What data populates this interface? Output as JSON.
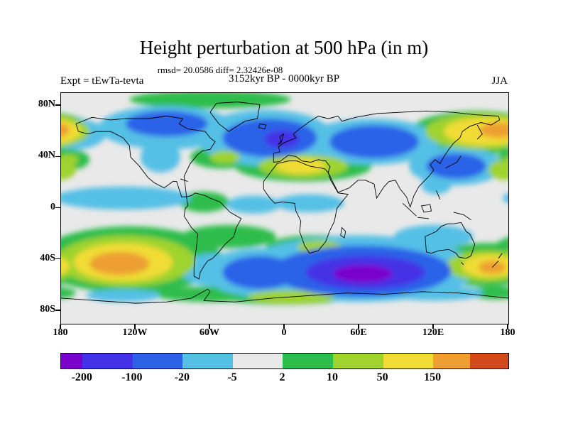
{
  "header": {
    "title": "Height perturbation at 500 hPa (in m)",
    "stats_line": "rmsd= 20.0586 diff= 2.32426e-08",
    "comparison_line": "3152kyr BP - 0000kyr BP",
    "experiment_label": "Expt = tEwTa-tevta",
    "season_label": "JJA"
  },
  "axes": {
    "lat_ticks": [
      {
        "label": "80N",
        "lat": 80
      },
      {
        "label": "40N",
        "lat": 40
      },
      {
        "label": "0",
        "lat": 0
      },
      {
        "label": "40S",
        "lat": -40
      },
      {
        "label": "80S",
        "lat": -80
      }
    ],
    "lon_ticks": [
      {
        "label": "180",
        "lon": -180
      },
      {
        "label": "120W",
        "lon": -120
      },
      {
        "label": "60W",
        "lon": -60
      },
      {
        "label": "0",
        "lon": 0
      },
      {
        "label": "60E",
        "lon": 60
      },
      {
        "label": "120E",
        "lon": 120
      },
      {
        "label": "180",
        "lon": 180
      }
    ],
    "lon_range": [
      -180,
      180
    ],
    "lat_range": [
      -90,
      90
    ]
  },
  "chart_data": {
    "type": "heatmap",
    "subtype": "filled-contour-world-map",
    "title": "Height perturbation at 500 hPa (in m)",
    "variable": "Height perturbation",
    "pressure_level": "500 hPa",
    "units": "m",
    "season": "JJA",
    "experiment": "tEwTa-tevta",
    "difference": "3152kyr BP - 0000kyr BP",
    "rmsd": 20.0586,
    "diff": 2.32426e-08,
    "background_color": "#E9E9E9",
    "colorbar": {
      "levels": [
        -200,
        -100,
        -20,
        -5,
        2,
        10,
        50,
        150
      ],
      "labels": [
        "-200",
        "-100",
        "-20",
        "-5",
        "2",
        "10",
        "50",
        "150"
      ],
      "colors": [
        "#7A00CC",
        "#4433E6",
        "#2B62E8",
        "#55C0E6",
        "#E9E9E9",
        "#2EBD4B",
        "#9FD32E",
        "#F0DC34",
        "#EE9F30",
        "#D4491C"
      ],
      "segment_widths_pct": [
        4.8,
        11.2,
        11.2,
        11.2,
        11.2,
        11.2,
        11.2,
        11.2,
        8.3,
        8.5
      ]
    },
    "region_format": [
      "lon",
      "lat",
      "rx_deg",
      "ry_deg",
      "value_m"
    ],
    "anomaly_regions": [
      [
        -60,
        85,
        65,
        7,
        5
      ],
      [
        -95,
        63,
        55,
        17,
        -10
      ],
      [
        -95,
        66,
        33,
        10,
        -50
      ],
      [
        -100,
        40,
        16,
        12,
        -10
      ],
      [
        -170,
        58,
        26,
        12,
        -10
      ],
      [
        -15,
        55,
        55,
        22,
        -10
      ],
      [
        -12,
        55,
        38,
        15,
        -50
      ],
      [
        -2,
        54,
        14,
        7,
        -120
      ],
      [
        70,
        52,
        55,
        18,
        -10
      ],
      [
        72,
        52,
        36,
        13,
        -50
      ],
      [
        138,
        33,
        38,
        15,
        -10
      ],
      [
        138,
        33,
        24,
        10,
        -50
      ],
      [
        155,
        59,
        55,
        17,
        5
      ],
      [
        158,
        60,
        45,
        14,
        20
      ],
      [
        162,
        60,
        34,
        11,
        70
      ],
      [
        172,
        61,
        15,
        6,
        160
      ],
      [
        15,
        33,
        55,
        12,
        5
      ],
      [
        15,
        33,
        36,
        9,
        20
      ],
      [
        13,
        33,
        20,
        6,
        70
      ],
      [
        -50,
        40,
        26,
        9,
        5
      ],
      [
        -48,
        40,
        12,
        5,
        20
      ],
      [
        -173,
        38,
        16,
        8,
        5
      ],
      [
        -174,
        38,
        8,
        4,
        20
      ],
      [
        178,
        30,
        14,
        8,
        20
      ],
      [
        -130,
        8,
        55,
        9,
        -10
      ],
      [
        -65,
        5,
        20,
        8,
        5
      ],
      [
        -25,
        3,
        22,
        7,
        -10
      ],
      [
        20,
        4,
        28,
        7,
        -10
      ],
      [
        122,
        18,
        12,
        7,
        -10
      ],
      [
        -125,
        -40,
        75,
        26,
        5
      ],
      [
        -128,
        -41,
        56,
        20,
        20
      ],
      [
        -130,
        -42,
        40,
        15,
        70
      ],
      [
        -133,
        -43,
        24,
        9,
        160
      ],
      [
        -55,
        -48,
        30,
        13,
        -10
      ],
      [
        -20,
        -50,
        45,
        19,
        -10
      ],
      [
        -20,
        -50,
        30,
        13,
        -50
      ],
      [
        60,
        -47,
        95,
        26,
        -10
      ],
      [
        62,
        -49,
        72,
        20,
        -50
      ],
      [
        65,
        -50,
        48,
        13,
        -120
      ],
      [
        63,
        -51,
        24,
        7,
        -220
      ],
      [
        120,
        -22,
        32,
        9,
        -10
      ],
      [
        162,
        -44,
        45,
        17,
        5
      ],
      [
        163,
        -45,
        33,
        12,
        20
      ],
      [
        165,
        -45,
        22,
        9,
        70
      ],
      [
        167,
        -46,
        11,
        5,
        160
      ],
      [
        25,
        -30,
        40,
        9,
        5
      ],
      [
        28,
        -30,
        18,
        5,
        20
      ],
      [
        -45,
        -22,
        38,
        9,
        5
      ],
      [
        -60,
        -67,
        45,
        6,
        5
      ],
      [
        0,
        -68,
        55,
        7,
        5
      ],
      [
        5,
        -69,
        35,
        5,
        20
      ],
      [
        120,
        -66,
        40,
        6,
        -10
      ],
      [
        -130,
        -68,
        30,
        5,
        -10
      ],
      [
        170,
        -66,
        22,
        5,
        5
      ]
    ]
  }
}
